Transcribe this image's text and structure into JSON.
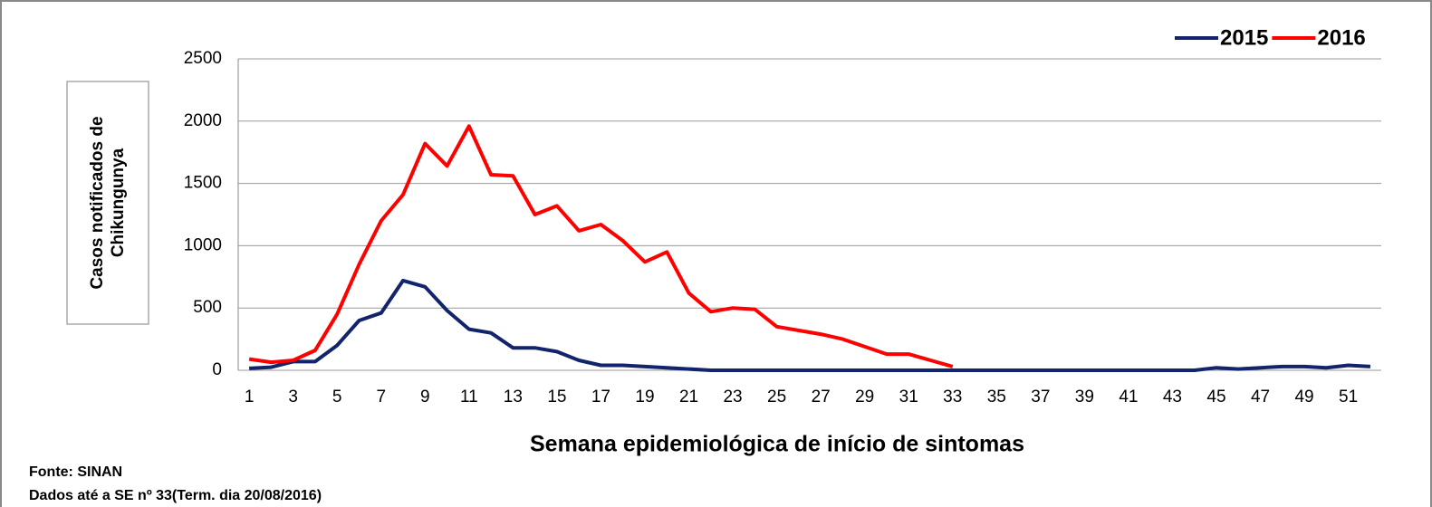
{
  "chart_data": {
    "type": "line",
    "ylabel": [
      "Casos  notificados  de",
      "Chikungunya"
    ],
    "xlabel": "Semana epidemiológica de início de sintomas",
    "categories": [
      1,
      null,
      3,
      null,
      5,
      null,
      7,
      null,
      9,
      null,
      11,
      null,
      13,
      null,
      15,
      null,
      17,
      null,
      19,
      null,
      21,
      null,
      23,
      null,
      25,
      null,
      27,
      null,
      29,
      null,
      31,
      null,
      33,
      null,
      35,
      null,
      37,
      null,
      39,
      null,
      41,
      null,
      43,
      null,
      45,
      null,
      47,
      null,
      49,
      null,
      51,
      null
    ],
    "series": [
      {
        "name": "2015",
        "color": "#12246b",
        "values": [
          15,
          25,
          70,
          70,
          200,
          400,
          460,
          720,
          670,
          480,
          330,
          300,
          180,
          180,
          150,
          80,
          40,
          40,
          30,
          20,
          10,
          0,
          0,
          0,
          0,
          0,
          0,
          0,
          0,
          0,
          0,
          0,
          0,
          0,
          0,
          0,
          0,
          0,
          0,
          0,
          0,
          0,
          0,
          0,
          20,
          10,
          20,
          30,
          30,
          20,
          40,
          30
        ]
      },
      {
        "name": "2016",
        "color": "#ff0000",
        "values": [
          90,
          65,
          80,
          160,
          450,
          850,
          1200,
          1410,
          1820,
          1640,
          1960,
          1570,
          1560,
          1250,
          1320,
          1120,
          1170,
          1040,
          870,
          950,
          620,
          470,
          500,
          490,
          350,
          320,
          290,
          250,
          190,
          130,
          130,
          80,
          30,
          null,
          null,
          null,
          null,
          null,
          null,
          null,
          null,
          null,
          null,
          null,
          null,
          null,
          null,
          null,
          null,
          null,
          null,
          null
        ]
      }
    ],
    "ylim": [
      0,
      2500
    ],
    "yticks": [
      0,
      500,
      1000,
      1500,
      2000,
      2500
    ],
    "grid": true,
    "legend": "top-right",
    "footer": [
      "Fonte: SINAN",
      "Dados até a SE nº 33(Term. dia  20/08/2016)"
    ]
  }
}
